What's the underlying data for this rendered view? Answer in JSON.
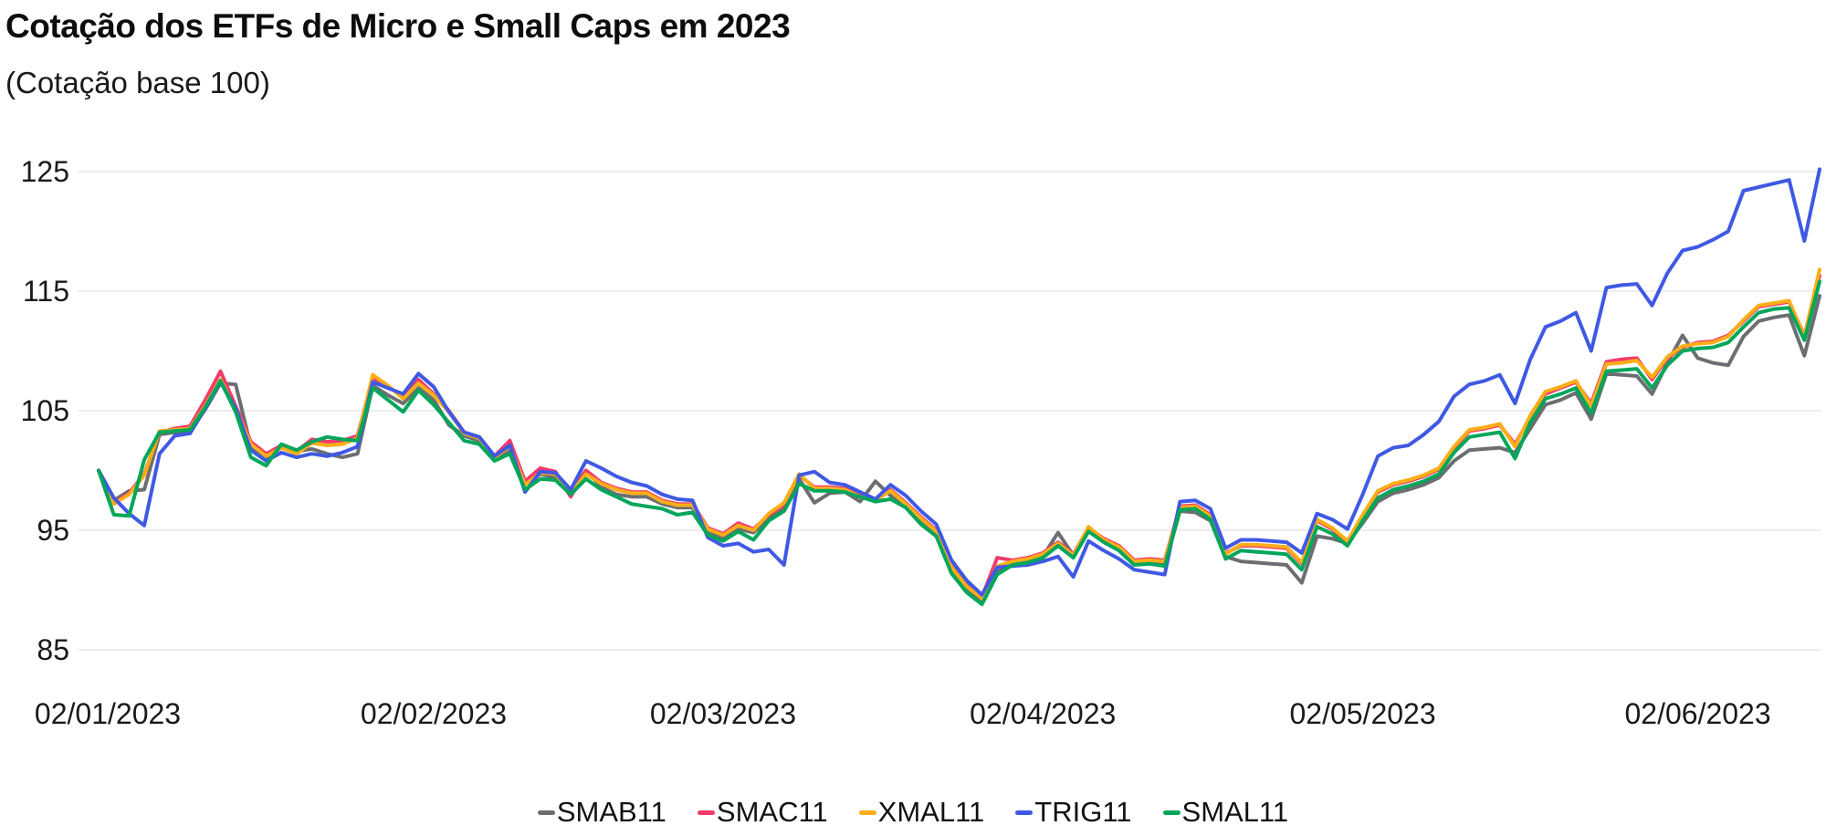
{
  "title": "Cotação dos ETFs de Micro e Small Caps em 2023",
  "subtitle": "(Cotação base 100)",
  "chart_data": {
    "type": "line",
    "title": "Cotação dos ETFs de Micro e Small Caps em 2023",
    "subtitle": "(Cotação base 100)",
    "xlabel": "",
    "ylabel": "",
    "grid": "horizontal",
    "legend_position": "bottom-center",
    "y_ticks": [
      85,
      95,
      105,
      115,
      125
    ],
    "ylim": [
      85,
      125
    ],
    "n_points": 114,
    "x_tick_labels": [
      "02/01/2023",
      "02/02/2023",
      "02/03/2023",
      "02/04/2023",
      "02/05/2023",
      "02/06/2023"
    ],
    "x_tick_indices": [
      0,
      22,
      41,
      62,
      83,
      105
    ],
    "series": [
      {
        "name": "SMAB11",
        "color": "#6d6e71",
        "values": [
          100.0,
          97.5,
          98.3,
          98.4,
          103.0,
          103.2,
          103.3,
          105.1,
          107.3,
          107.2,
          102.0,
          101.1,
          101.9,
          101.6,
          101.8,
          101.4,
          101.1,
          101.4,
          107.1,
          106.3,
          105.6,
          106.9,
          105.9,
          103.8,
          102.9,
          102.5,
          101.0,
          101.7,
          98.9,
          99.7,
          99.4,
          98.2,
          100.0,
          98.6,
          98.0,
          97.8,
          97.8,
          97.2,
          96.9,
          96.9,
          94.9,
          94.4,
          95.1,
          94.8,
          96.0,
          96.8,
          99.3,
          97.3,
          98.1,
          98.2,
          97.4,
          99.1,
          97.9,
          96.9,
          95.6,
          94.6,
          91.6,
          90.0,
          89.1,
          91.5,
          92.2,
          92.4,
          92.8,
          94.8,
          92.9,
          95.0,
          94.1,
          93.4,
          92.3,
          92.3,
          92.1,
          96.6,
          96.5,
          95.8,
          92.8,
          92.4,
          92.3,
          92.2,
          92.1,
          90.6,
          94.5,
          94.3,
          93.9,
          95.6,
          97.4,
          98.1,
          98.4,
          98.8,
          99.4,
          100.8,
          101.7,
          101.8,
          101.9,
          101.5,
          103.5,
          105.5,
          105.9,
          106.5,
          104.3,
          108.1,
          108.0,
          107.9,
          106.4,
          109.0,
          111.3,
          109.4,
          109.0,
          108.8,
          111.2,
          112.5,
          112.8,
          113.0,
          109.6,
          114.6
        ]
      },
      {
        "name": "SMAC11",
        "color": "#f23b6c",
        "values": [
          100.0,
          97.3,
          98.1,
          99.7,
          103.2,
          103.5,
          103.7,
          105.9,
          108.3,
          105.4,
          102.4,
          101.4,
          102.1,
          101.6,
          102.6,
          102.4,
          102.5,
          102.9,
          107.7,
          107.0,
          106.2,
          107.6,
          106.4,
          105.0,
          103.2,
          102.8,
          101.2,
          102.5,
          99.1,
          100.2,
          99.9,
          97.8,
          100.0,
          99.0,
          98.5,
          98.2,
          98.2,
          97.5,
          97.2,
          97.2,
          95.2,
          94.7,
          95.6,
          95.1,
          96.3,
          97.1,
          99.6,
          98.6,
          98.6,
          98.5,
          97.9,
          97.6,
          98.4,
          97.3,
          96.1,
          95.0,
          92.0,
          90.4,
          89.4,
          92.7,
          92.5,
          92.7,
          93.1,
          94.0,
          93.0,
          95.2,
          94.3,
          93.7,
          92.5,
          92.6,
          92.5,
          97.0,
          97.1,
          96.3,
          93.1,
          93.7,
          93.7,
          93.6,
          93.5,
          92.2,
          95.8,
          95.1,
          94.0,
          96.2,
          98.2,
          98.8,
          99.1,
          99.5,
          100.1,
          101.9,
          103.3,
          103.5,
          103.8,
          102.2,
          104.4,
          106.4,
          106.9,
          107.4,
          105.6,
          109.1,
          109.3,
          109.4,
          107.6,
          109.4,
          110.3,
          110.7,
          110.8,
          111.3,
          112.5,
          113.7,
          113.9,
          114.1,
          111.3,
          116.3
        ]
      },
      {
        "name": "XMAL11",
        "color": "#fcae17",
        "values": [
          100.0,
          97.2,
          98.0,
          99.6,
          103.3,
          103.4,
          103.5,
          105.4,
          107.6,
          105.1,
          102.2,
          101.2,
          101.9,
          101.4,
          102.3,
          102.1,
          102.2,
          102.7,
          108.0,
          107.1,
          106.0,
          107.3,
          106.3,
          104.9,
          103.1,
          102.7,
          101.1,
          102.0,
          98.8,
          99.8,
          99.7,
          98.1,
          99.7,
          98.9,
          98.4,
          98.1,
          98.1,
          97.4,
          97.1,
          97.1,
          95.1,
          94.6,
          95.4,
          95.0,
          96.4,
          97.3,
          99.7,
          98.5,
          98.5,
          98.4,
          97.8,
          97.5,
          98.3,
          97.2,
          96.0,
          94.9,
          91.9,
          90.3,
          89.3,
          92.0,
          92.4,
          92.6,
          93.0,
          93.9,
          92.9,
          95.3,
          94.2,
          93.6,
          92.4,
          92.5,
          92.4,
          96.9,
          97.0,
          96.2,
          93.0,
          93.8,
          93.8,
          93.7,
          93.6,
          92.3,
          95.9,
          95.2,
          94.1,
          96.3,
          98.3,
          98.9,
          99.2,
          99.6,
          100.2,
          102.0,
          103.4,
          103.6,
          103.9,
          102.0,
          104.6,
          106.6,
          107.0,
          107.5,
          105.4,
          108.9,
          109.0,
          109.2,
          107.8,
          109.5,
          110.4,
          110.6,
          110.7,
          111.2,
          112.6,
          113.8,
          114.0,
          114.2,
          111.2,
          116.8
        ]
      },
      {
        "name": "TRIG11",
        "color": "#3f59e4",
        "values": [
          100.0,
          97.7,
          96.4,
          95.4,
          101.4,
          102.9,
          103.1,
          105.2,
          107.4,
          105.2,
          101.7,
          100.8,
          101.5,
          101.1,
          101.4,
          101.2,
          101.5,
          102.0,
          107.4,
          106.9,
          106.4,
          108.1,
          107.0,
          104.9,
          103.2,
          102.8,
          101.2,
          102.1,
          98.2,
          99.9,
          99.8,
          98.4,
          100.8,
          100.2,
          99.5,
          99.0,
          98.7,
          98.0,
          97.6,
          97.5,
          94.4,
          93.7,
          93.9,
          93.2,
          93.4,
          92.1,
          99.6,
          99.9,
          99.0,
          98.8,
          98.2,
          97.6,
          98.8,
          97.9,
          96.6,
          95.5,
          92.5,
          90.8,
          89.6,
          91.9,
          92.0,
          92.1,
          92.4,
          92.8,
          91.1,
          94.1,
          93.3,
          92.6,
          91.7,
          91.5,
          91.3,
          97.4,
          97.5,
          96.8,
          93.5,
          94.2,
          94.2,
          94.1,
          94.0,
          93.1,
          96.4,
          95.9,
          95.1,
          98.0,
          101.2,
          101.9,
          102.1,
          103.0,
          104.1,
          106.2,
          107.2,
          107.5,
          108.0,
          105.6,
          109.3,
          112.0,
          112.5,
          113.2,
          110.0,
          115.3,
          115.5,
          115.6,
          113.8,
          116.5,
          118.4,
          118.7,
          119.3,
          120.0,
          123.4,
          123.7,
          124.0,
          124.3,
          119.2,
          125.2
        ]
      },
      {
        "name": "SMAL11",
        "color": "#00a65a",
        "values": [
          100.0,
          96.3,
          96.2,
          100.9,
          103.2,
          103.3,
          103.4,
          105.3,
          107.5,
          104.9,
          101.1,
          100.4,
          102.2,
          101.7,
          102.4,
          102.8,
          102.6,
          102.5,
          106.9,
          105.9,
          104.9,
          106.7,
          105.5,
          104.0,
          102.5,
          102.2,
          100.8,
          101.4,
          98.4,
          99.3,
          99.2,
          98.0,
          99.3,
          98.4,
          97.8,
          97.2,
          97.0,
          96.8,
          96.3,
          96.5,
          94.6,
          94.1,
          94.9,
          94.2,
          95.8,
          96.6,
          98.9,
          98.3,
          98.3,
          98.2,
          97.8,
          97.4,
          97.6,
          96.9,
          95.5,
          94.5,
          91.4,
          89.8,
          88.8,
          91.3,
          92.1,
          92.3,
          92.7,
          93.7,
          92.7,
          94.9,
          94.0,
          93.3,
          92.1,
          92.2,
          92.0,
          96.7,
          96.8,
          95.9,
          92.6,
          93.3,
          93.2,
          93.1,
          93.0,
          91.7,
          95.3,
          94.7,
          93.7,
          95.8,
          97.7,
          98.4,
          98.7,
          99.1,
          99.7,
          101.5,
          102.8,
          103.0,
          103.2,
          101.0,
          104.0,
          106.0,
          106.4,
          106.9,
          104.8,
          108.3,
          108.4,
          108.5,
          106.9,
          108.8,
          110.0,
          110.2,
          110.3,
          110.7,
          112.0,
          113.2,
          113.5,
          113.6,
          110.9,
          115.8
        ]
      }
    ]
  }
}
